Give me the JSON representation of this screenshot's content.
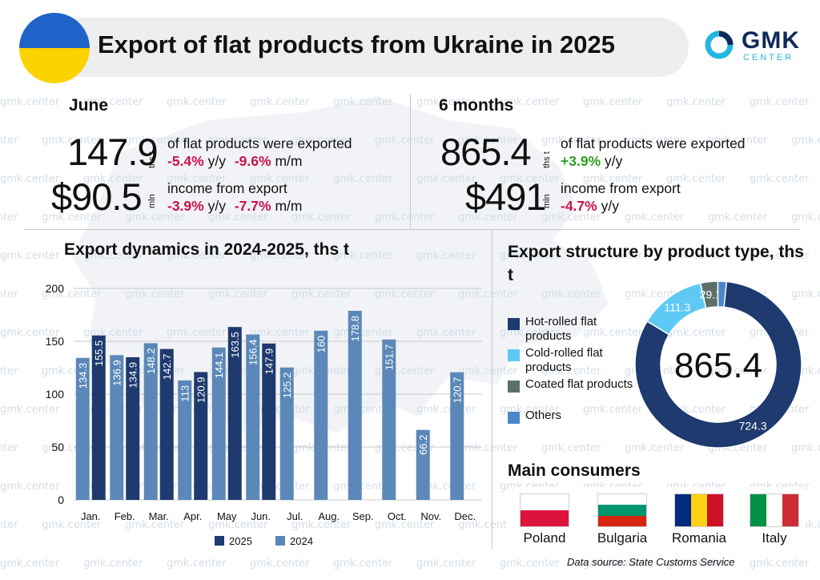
{
  "header": {
    "title": "Export of flat products from Ukraine in 2025",
    "logo_main": "GMK",
    "logo_sub": "CENTER",
    "flag_colors": [
      "#1f63c8",
      "#fbd300"
    ]
  },
  "watermark_text": "gmk.center",
  "kpi": {
    "june": {
      "period": "June",
      "volume_value": "147.9",
      "volume_unit": "ths t",
      "volume_desc": "of flat products were exported",
      "volume_yy": "-5.4%",
      "volume_yy_suffix": "y/y",
      "volume_mm": "-9.6%",
      "volume_mm_suffix": "m/m",
      "income_value": "$90.5",
      "income_unit": "mln",
      "income_desc": "income from export",
      "income_yy": "-3.9%",
      "income_yy_suffix": "y/y",
      "income_mm": "-7.7%",
      "income_mm_suffix": "m/m"
    },
    "six_months": {
      "period": "6 months",
      "volume_value": "865.4",
      "volume_unit": "ths t",
      "volume_desc": "of flat products were exported",
      "volume_yy": "+3.9%",
      "volume_yy_suffix": "y/y",
      "income_value": "$491",
      "income_unit": "mln",
      "income_desc": "income from export",
      "income_yy": "-4.7%",
      "income_yy_suffix": "y/y"
    }
  },
  "colors": {
    "dark_blue": "#1e3a6e",
    "mid_blue": "#5b88b8",
    "light_blue": "#5ec9f5",
    "gray_green": "#5d7068",
    "accent_red": "#c8124a",
    "accent_green": "#2e9f1e"
  },
  "chart_data": [
    {
      "type": "bar",
      "title": "Export dynamics in 2024-2025, ths t",
      "categories": [
        "Jan.",
        "Feb.",
        "Mar.",
        "Apr.",
        "May",
        "Jun.",
        "Jul.",
        "Aug.",
        "Sep.",
        "Oct.",
        "Nov.",
        "Dec."
      ],
      "series": [
        {
          "name": "2024",
          "color": "#5b88b8",
          "values": [
            134.3,
            136.9,
            148.2,
            113,
            144.1,
            156.4,
            125.2,
            160,
            178.8,
            151.7,
            66.2,
            120.7
          ]
        },
        {
          "name": "2025",
          "color": "#1e3a6e",
          "values": [
            155.5,
            134.9,
            142.7,
            120.9,
            163.5,
            147.9,
            null,
            null,
            null,
            null,
            null,
            null
          ]
        }
      ],
      "ylim": [
        0,
        200
      ],
      "yticks": [
        0,
        50,
        100,
        150,
        200
      ],
      "grid": true,
      "legend": "bottom"
    },
    {
      "type": "pie",
      "variant": "donut",
      "title": "Export structure by product type, ths t",
      "center_label": "865.4",
      "slices": [
        {
          "label": "Hot-rolled flat products",
          "value": 724.3,
          "color": "#1e3a6e",
          "value_label": "724.3"
        },
        {
          "label": "Cold-rolled flat products",
          "value": 111.3,
          "color": "#5ec9f5",
          "value_label": "111.3"
        },
        {
          "label": "Coated flat products",
          "value": 29.1,
          "color": "#5d7068",
          "value_label": "29.1"
        },
        {
          "label": "Others",
          "value": 0.7,
          "color": "#4a86c8",
          "value_label": ""
        }
      ],
      "legend": "left"
    }
  ],
  "consumers": {
    "title": "Main consumers",
    "items": [
      {
        "name": "Poland",
        "flag": [
          "#ffffff",
          "#dc143c"
        ],
        "orientation": "horizontal"
      },
      {
        "name": "Bulgaria",
        "flag": [
          "#ffffff",
          "#00966e",
          "#d62612"
        ],
        "orientation": "horizontal"
      },
      {
        "name": "Romania",
        "flag": [
          "#002b7f",
          "#fcd116",
          "#ce1126"
        ],
        "orientation": "vertical"
      },
      {
        "name": "Italy",
        "flag": [
          "#009246",
          "#ffffff",
          "#ce2b37"
        ],
        "orientation": "vertical"
      }
    ]
  },
  "source": "Data source: State Customs Service"
}
